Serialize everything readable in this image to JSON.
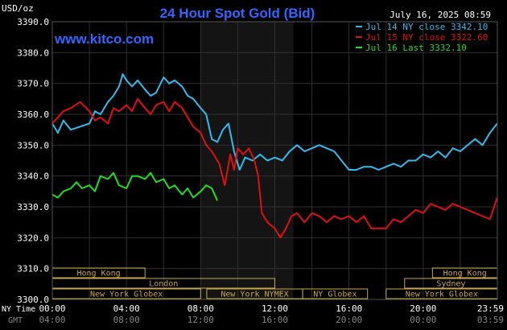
{
  "chart_data": {
    "type": "line",
    "title": "24 Hour Spot Gold (Bid)",
    "brand": "www.kitco.com",
    "ylabel": "USD/oz",
    "timestamp": "July 16, 2025 08:59",
    "ylim": [
      3300,
      3390
    ],
    "y_ticks": [
      "3390.0",
      "3380.0",
      "3370.0",
      "3360.0",
      "3350.0",
      "3340.0",
      "3330.0",
      "3320.0",
      "3310.0",
      "3300.0"
    ],
    "x_ticks_ny": [
      "00:00",
      "04:00",
      "08:00",
      "12:00",
      "16:00",
      "20:00",
      "23:59"
    ],
    "x_ticks_gmt": [
      "04:00",
      "08:00",
      "12:00",
      "16:00",
      "20:00",
      "00:00",
      "03:59"
    ],
    "x_row_labels": {
      "ny": "NY Time",
      "gmt": "GMT"
    },
    "grid": true,
    "legend_position": "top-right",
    "colors": {
      "jul14": "#33bbee",
      "jul15": "#dd1111",
      "jul16": "#22dd22",
      "grid": "#2f2f2f",
      "text": "#ffffff",
      "title": "#3366ff",
      "session_fill": "#c8a64a",
      "session_text": "#1a1a1a"
    },
    "legend": [
      {
        "label": "Jul 14 NY close 3342.10",
        "color": "#33bbee"
      },
      {
        "label": "Jul 15 NY close 3322.60",
        "color": "#dd1111"
      },
      {
        "label": "Jul 16 Last 3332.10",
        "color": "#22dd22"
      }
    ],
    "sessions": [
      {
        "name": "Hong Kong",
        "start": -2.0,
        "end": 5.0,
        "row": 0
      },
      {
        "name": "London",
        "start": 0.0,
        "end": 12.0,
        "row": 1
      },
      {
        "name": "New York Globex",
        "start": -3.0,
        "end": 8.0,
        "row": 2
      },
      {
        "name": "New York NYMEX",
        "start": 8.33,
        "end": 13.5,
        "row": 2
      },
      {
        "name": "NY Globex",
        "start": 13.5,
        "end": 17.0,
        "row": 2
      },
      {
        "name": "Hong Kong",
        "start": 20.5,
        "end": 24.0,
        "row": 0
      },
      {
        "name": "Sydney",
        "start": 19.0,
        "end": 24.0,
        "row": 1
      },
      {
        "name": "New York Globex",
        "start": 18.0,
        "end": 24.0,
        "row": 2
      }
    ],
    "highlight_hours": [
      8.0,
      13.0
    ],
    "series": [
      {
        "name": "Jul 14 NY close 3342.10",
        "color": "#33bbee",
        "x": [
          0,
          0.3,
          0.6,
          1.0,
          1.5,
          2.0,
          2.3,
          2.6,
          3.0,
          3.3,
          3.6,
          3.8,
          4.0,
          4.3,
          4.6,
          5.0,
          5.3,
          5.6,
          6.0,
          6.3,
          6.6,
          7.0,
          7.3,
          7.6,
          8.0,
          8.3,
          8.6,
          8.9,
          9.2,
          9.5,
          9.8,
          10.1,
          10.4,
          10.8,
          11.2,
          11.6,
          12.0,
          12.4,
          12.8,
          13.2,
          13.6,
          14.0,
          14.4,
          14.8,
          15.2,
          15.6,
          16.0,
          16.4,
          16.8,
          17.2,
          17.6,
          18.0,
          18.4,
          18.8,
          19.2,
          19.6,
          20.0,
          20.4,
          20.8,
          21.2,
          21.6,
          22.0,
          22.4,
          22.8,
          23.2,
          23.6,
          23.99
        ],
        "values": [
          3357,
          3354,
          3358,
          3355,
          3356,
          3357,
          3361,
          3360,
          3364,
          3366,
          3369,
          3373,
          3371,
          3369,
          3371,
          3368,
          3366,
          3367,
          3372,
          3370,
          3371,
          3369,
          3366,
          3365,
          3362,
          3360,
          3352,
          3351,
          3355,
          3357,
          3348,
          3342,
          3346,
          3345,
          3347,
          3345,
          3346,
          3345,
          3348,
          3350,
          3348,
          3349,
          3350,
          3349,
          3348,
          3345,
          3342,
          3342,
          3343,
          3343,
          3342,
          3343,
          3344,
          3343,
          3345,
          3345,
          3347,
          3346,
          3348,
          3346,
          3349,
          3348,
          3350,
          3352,
          3350,
          3354,
          3357
        ]
      },
      {
        "name": "Jul 15 NY close 3322.60",
        "color": "#dd1111",
        "x": [
          0,
          0.3,
          0.6,
          1.0,
          1.5,
          2.0,
          2.3,
          2.6,
          3.0,
          3.3,
          3.6,
          4.0,
          4.3,
          4.6,
          5.0,
          5.3,
          5.6,
          6.0,
          6.3,
          6.6,
          7.0,
          7.3,
          7.6,
          8.0,
          8.3,
          8.6,
          9.0,
          9.3,
          9.6,
          9.8,
          10.0,
          10.3,
          10.6,
          10.9,
          11.1,
          11.3,
          11.6,
          12.0,
          12.3,
          12.6,
          12.9,
          13.2,
          13.6,
          14.0,
          14.4,
          14.8,
          15.2,
          15.6,
          16.0,
          16.4,
          16.8,
          17.2,
          17.6,
          18.0,
          18.4,
          18.8,
          19.2,
          19.6,
          20.0,
          20.4,
          20.8,
          21.2,
          21.6,
          22.0,
          22.4,
          22.8,
          23.2,
          23.6,
          23.99
        ],
        "values": [
          3357,
          3359,
          3361,
          3362,
          3364,
          3361,
          3358,
          3359,
          3357,
          3362,
          3361,
          3363,
          3361,
          3365,
          3362,
          3360,
          3363,
          3364,
          3361,
          3364,
          3362,
          3359,
          3356,
          3354,
          3350,
          3348,
          3344,
          3337,
          3347,
          3342,
          3349,
          3347,
          3349,
          3345,
          3340,
          3328,
          3325,
          3323,
          3320,
          3323,
          3327,
          3328,
          3325,
          3328,
          3327,
          3325,
          3327,
          3326,
          3327,
          3325,
          3327,
          3323,
          3323,
          3323,
          3326,
          3325,
          3327,
          3329,
          3328,
          3331,
          3330,
          3329,
          3331,
          3330,
          3329,
          3328,
          3327,
          3326,
          3333
        ]
      },
      {
        "name": "Jul 16 Last 3332.10",
        "color": "#22dd22",
        "x": [
          0,
          0.3,
          0.6,
          1.0,
          1.3,
          1.6,
          2.0,
          2.3,
          2.6,
          3.0,
          3.3,
          3.6,
          4.0,
          4.3,
          4.6,
          5.0,
          5.3,
          5.6,
          6.0,
          6.3,
          6.6,
          7.0,
          7.3,
          7.6,
          8.0,
          8.3,
          8.6,
          8.9
        ],
        "values": [
          3334,
          3333,
          3335,
          3336,
          3338,
          3336,
          3337,
          3335,
          3340,
          3339,
          3341,
          3337,
          3336,
          3340,
          3340,
          3339,
          3341,
          3338,
          3339,
          3336,
          3337,
          3334,
          3336,
          3333,
          3335,
          3337,
          3336,
          3332
        ]
      }
    ]
  }
}
